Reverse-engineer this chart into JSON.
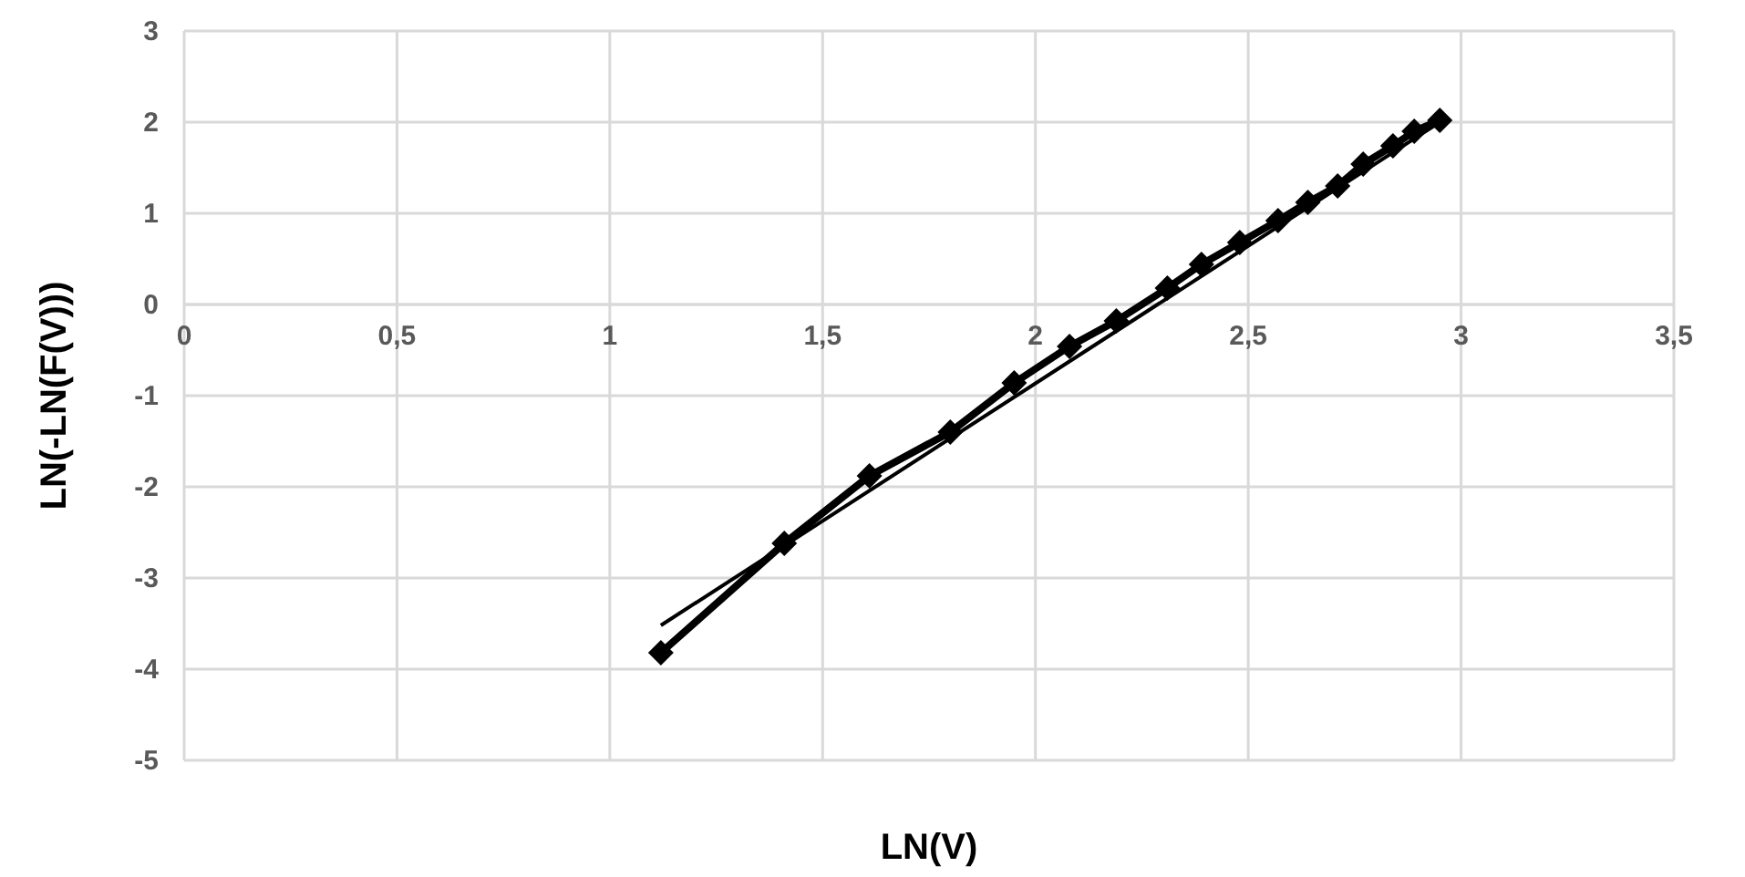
{
  "chart_data": {
    "type": "line",
    "xlabel": "LN(V)",
    "ylabel": "LN(-LN(F(V)))",
    "xlim": [
      0,
      3.5
    ],
    "ylim": [
      -5,
      3
    ],
    "xticks": [
      0,
      {
        "value": 0.5,
        "label": "0,5"
      },
      1,
      {
        "value": 1.5,
        "label": "1,5"
      },
      2,
      {
        "value": 2.5,
        "label": "2,5"
      },
      3,
      {
        "value": 3.5,
        "label": "3,5"
      }
    ],
    "yticks": [
      -5,
      -4,
      -3,
      -2,
      -1,
      0,
      1,
      2,
      3
    ],
    "grid": true,
    "series": [
      {
        "color": "#000000",
        "marker": "diamond",
        "x": [
          1.12,
          1.41,
          1.61,
          1.8,
          1.95,
          2.08,
          2.19,
          2.31,
          2.39,
          2.48,
          2.57,
          2.64,
          2.71,
          2.77,
          2.84,
          2.89,
          2.95
        ],
        "values": [
          -3.82,
          -2.62,
          -1.88,
          -1.4,
          -0.86,
          -0.46,
          -0.18,
          0.18,
          0.44,
          0.68,
          0.92,
          1.12,
          1.3,
          1.54,
          1.74,
          1.9,
          2.02
        ]
      },
      {
        "type": "line",
        "color": "#000000",
        "marker": "none",
        "x": [
          1.12,
          2.95
        ],
        "values": [
          -3.52,
          2.0
        ]
      }
    ]
  }
}
